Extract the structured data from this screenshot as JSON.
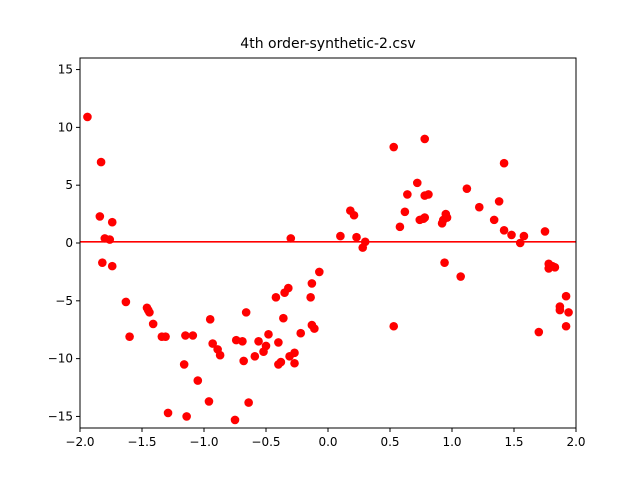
{
  "chart_data": {
    "type": "scatter",
    "title": "4th order-synthetic-2.csv",
    "xlabel": "",
    "ylabel": "",
    "xlim": [
      -2.0,
      2.0
    ],
    "ylim": [
      -16,
      16
    ],
    "x_ticks": [
      -2.0,
      -1.5,
      -1.0,
      -0.5,
      0.0,
      0.5,
      1.0,
      1.5,
      2.0
    ],
    "x_tick_labels": [
      "−2.0",
      "−1.5",
      "−1.0",
      "−0.5",
      "0.0",
      "0.5",
      "1.0",
      "1.5",
      "2.0"
    ],
    "y_ticks": [
      -15,
      -10,
      -5,
      0,
      5,
      10,
      15
    ],
    "y_tick_labels": [
      "−15",
      "−10",
      "−5",
      "0",
      "5",
      "10",
      "15"
    ],
    "grid": false,
    "marker_color": "#ff0000",
    "line_color": "#ff0000",
    "fit_line": {
      "x": [
        -2.0,
        2.0
      ],
      "y": [
        0.1,
        0.1
      ]
    },
    "points": [
      [
        -1.94,
        10.9
      ],
      [
        -1.83,
        7.0
      ],
      [
        -1.84,
        2.3
      ],
      [
        -1.8,
        0.4
      ],
      [
        -1.76,
        0.3
      ],
      [
        -1.74,
        1.8
      ],
      [
        -1.82,
        -1.7
      ],
      [
        -1.74,
        -2.0
      ],
      [
        -1.63,
        -5.1
      ],
      [
        -1.6,
        -8.1
      ],
      [
        -1.46,
        -5.6
      ],
      [
        -1.45,
        -5.8
      ],
      [
        -1.44,
        -6.0
      ],
      [
        -1.41,
        -7.0
      ],
      [
        -1.34,
        -8.1
      ],
      [
        -1.31,
        -8.1
      ],
      [
        -1.29,
        -14.7
      ],
      [
        -1.16,
        -10.5
      ],
      [
        -1.15,
        -8.0
      ],
      [
        -1.14,
        -15.0
      ],
      [
        -1.09,
        -8.0
      ],
      [
        -1.05,
        -11.9
      ],
      [
        -0.95,
        -6.6
      ],
      [
        -0.93,
        -8.7
      ],
      [
        -0.96,
        -13.7
      ],
      [
        -0.89,
        -9.2
      ],
      [
        -0.87,
        -9.7
      ],
      [
        -0.74,
        -8.4
      ],
      [
        -0.75,
        -15.3
      ],
      [
        -0.69,
        -8.5
      ],
      [
        -0.68,
        -10.2
      ],
      [
        -0.66,
        -6.0
      ],
      [
        -0.64,
        -13.8
      ],
      [
        -0.59,
        -9.8
      ],
      [
        -0.56,
        -8.5
      ],
      [
        -0.52,
        -9.4
      ],
      [
        -0.5,
        -8.9
      ],
      [
        -0.48,
        -7.9
      ],
      [
        -0.42,
        -4.7
      ],
      [
        -0.4,
        -8.6
      ],
      [
        -0.4,
        -10.5
      ],
      [
        -0.38,
        -10.3
      ],
      [
        -0.36,
        -6.5
      ],
      [
        -0.35,
        -4.3
      ],
      [
        -0.32,
        -3.9
      ],
      [
        -0.31,
        -9.8
      ],
      [
        -0.3,
        0.4
      ],
      [
        -0.27,
        -9.5
      ],
      [
        -0.27,
        -10.4
      ],
      [
        -0.22,
        -7.8
      ],
      [
        -0.14,
        -4.7
      ],
      [
        -0.13,
        -3.5
      ],
      [
        -0.13,
        -7.1
      ],
      [
        -0.11,
        -7.4
      ],
      [
        -0.07,
        -2.5
      ],
      [
        0.1,
        0.6
      ],
      [
        0.18,
        2.8
      ],
      [
        0.21,
        2.4
      ],
      [
        0.23,
        0.5
      ],
      [
        0.28,
        -0.4
      ],
      [
        0.3,
        0.1
      ],
      [
        0.53,
        8.3
      ],
      [
        0.53,
        -7.2
      ],
      [
        0.58,
        1.4
      ],
      [
        0.62,
        2.7
      ],
      [
        0.64,
        4.2
      ],
      [
        0.72,
        5.2
      ],
      [
        0.74,
        2.0
      ],
      [
        0.77,
        2.1
      ],
      [
        0.78,
        2.2
      ],
      [
        0.78,
        4.1
      ],
      [
        0.81,
        4.2
      ],
      [
        0.78,
        9.0
      ],
      [
        0.92,
        1.7
      ],
      [
        0.93,
        2.0
      ],
      [
        0.95,
        2.5
      ],
      [
        0.96,
        2.2
      ],
      [
        0.94,
        -1.7
      ],
      [
        1.07,
        -2.9
      ],
      [
        1.12,
        4.7
      ],
      [
        1.22,
        3.1
      ],
      [
        1.34,
        2.0
      ],
      [
        1.38,
        3.6
      ],
      [
        1.42,
        1.1
      ],
      [
        1.42,
        6.9
      ],
      [
        1.48,
        0.7
      ],
      [
        1.55,
        0.0
      ],
      [
        1.58,
        0.6
      ],
      [
        1.7,
        -7.7
      ],
      [
        1.75,
        1.0
      ],
      [
        1.78,
        -1.8
      ],
      [
        1.78,
        -2.2
      ],
      [
        1.81,
        -2.0
      ],
      [
        1.83,
        -2.1
      ],
      [
        1.87,
        -5.5
      ],
      [
        1.87,
        -5.8
      ],
      [
        1.92,
        -4.6
      ],
      [
        1.92,
        -7.2
      ],
      [
        1.94,
        -6.0
      ]
    ]
  }
}
